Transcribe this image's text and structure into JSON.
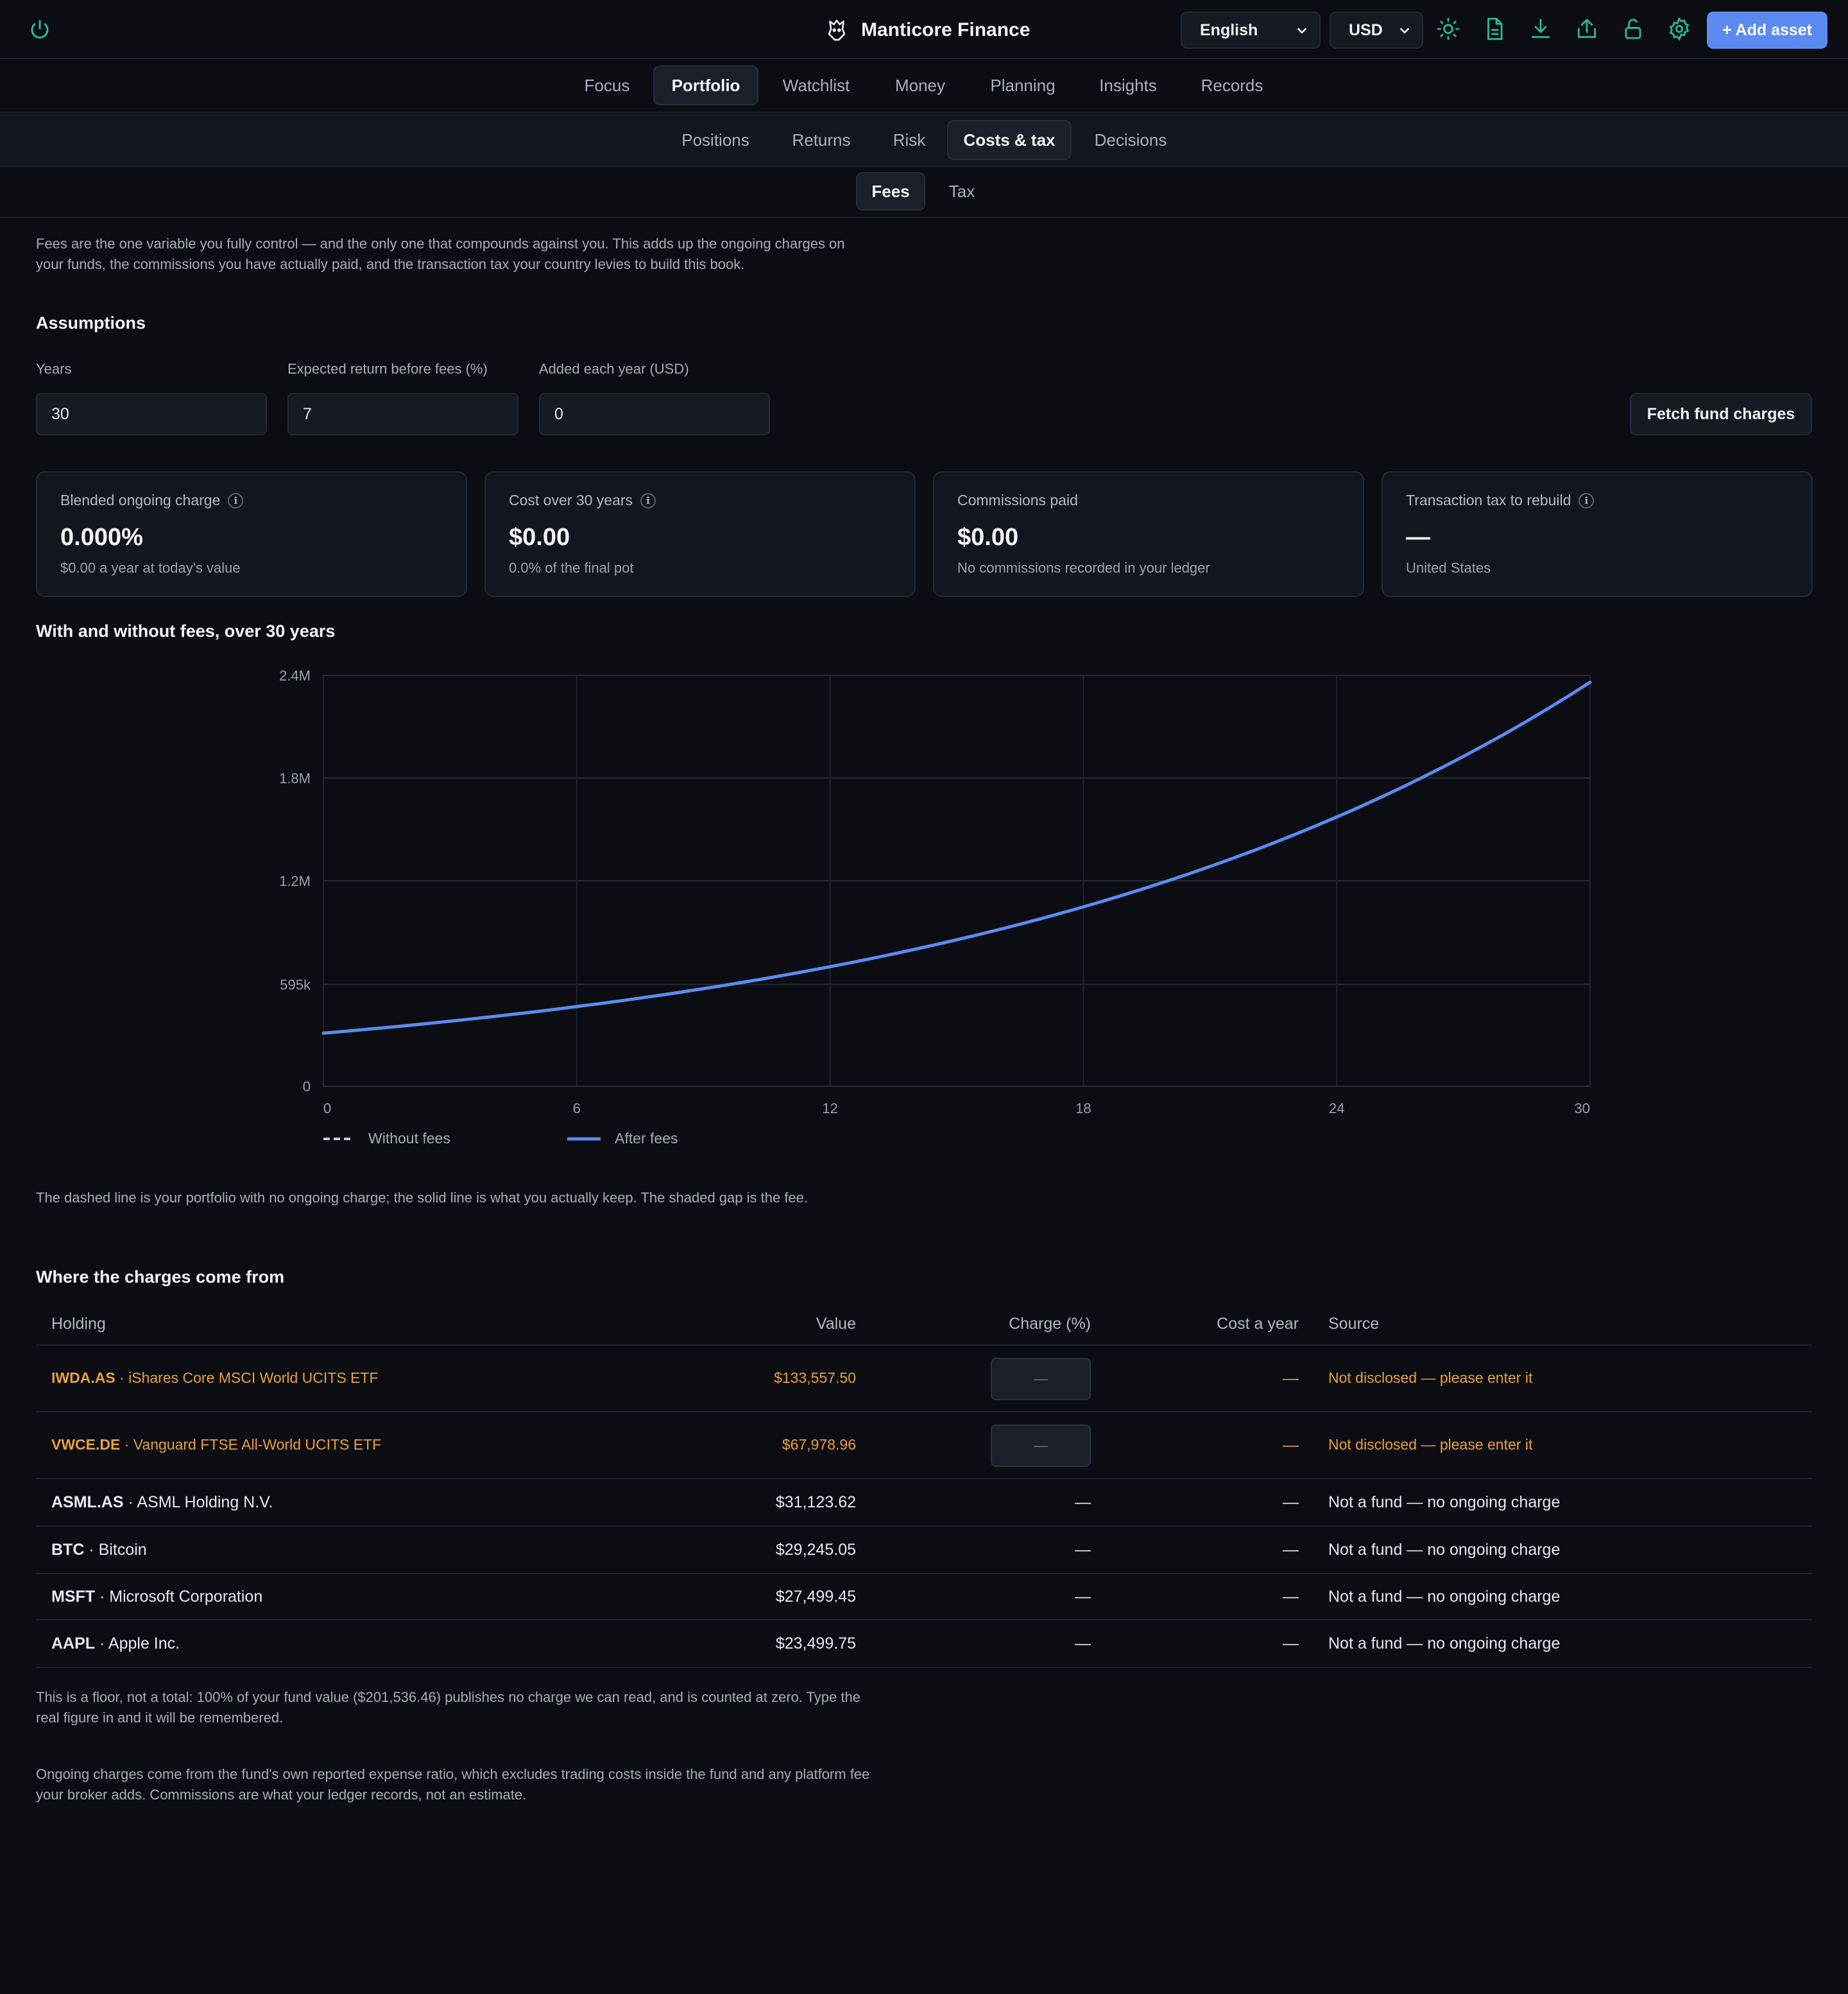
{
  "app": {
    "title": "Manticore Finance"
  },
  "toolbar": {
    "language": "English",
    "currency": "USD",
    "add_asset": "+ Add asset"
  },
  "nav": {
    "primary": [
      "Focus",
      "Portfolio",
      "Watchlist",
      "Money",
      "Planning",
      "Insights",
      "Records"
    ],
    "primary_active": "Portfolio",
    "secondary": [
      "Positions",
      "Returns",
      "Risk",
      "Costs & tax",
      "Decisions"
    ],
    "secondary_active": "Costs & tax",
    "tertiary": [
      "Fees",
      "Tax"
    ],
    "tertiary_active": "Fees"
  },
  "intro": "Fees are the one variable you fully control — and the only one that compounds against you. This adds up the ongoing charges on your funds, the commissions you have actually paid, and the transaction tax your country levies to build this book.",
  "assumptions": {
    "heading": "Assumptions",
    "years_label": "Years",
    "years_value": "30",
    "return_label": "Expected return before fees (%)",
    "return_value": "7",
    "added_label": "Added each year (USD)",
    "added_value": "0",
    "fetch_button": "Fetch fund charges"
  },
  "cards": [
    {
      "label": "Blended ongoing charge",
      "value": "0.000%",
      "sub": "$0.00 a year at today's value",
      "info": true
    },
    {
      "label": "Cost over 30 years",
      "value": "$0.00",
      "sub": "0.0% of the final pot",
      "info": true
    },
    {
      "label": "Commissions paid",
      "value": "$0.00",
      "sub": "No commissions recorded in your ledger",
      "info": false
    },
    {
      "label": "Transaction tax to rebuild",
      "value": "—",
      "sub": "United States",
      "info": true
    }
  ],
  "chart_heading": "With and without fees, over 30 years",
  "chart_data": {
    "type": "line",
    "x_ticks": [
      0,
      6,
      12,
      18,
      24,
      30
    ],
    "y_ticks": [
      0,
      595000,
      1200000,
      1800000,
      2400000
    ],
    "y_tick_labels": [
      "0",
      "595k",
      "1.2M",
      "1.8M",
      "2.4M"
    ],
    "xlim": [
      0,
      30
    ],
    "ylim": [
      0,
      2400000
    ],
    "grid": true,
    "legend_position": "bottom-left",
    "series": [
      {
        "name": "Without fees",
        "style": "dashed",
        "color": "#c9ced8",
        "start": 310000,
        "rate": 0.07
      },
      {
        "name": "After fees",
        "style": "solid",
        "color": "#5b8bf0",
        "start": 310000,
        "rate": 0.07
      }
    ]
  },
  "chart_note": "The dashed line is your portfolio with no ongoing charge; the solid line is what you actually keep. The shaded gap is the fee.",
  "charges": {
    "heading": "Where the charges come from",
    "columns": [
      "Holding",
      "Value",
      "Charge (%)",
      "Cost a year",
      "Source"
    ],
    "rows": [
      {
        "symbol": "IWDA.AS",
        "name": "iShares Core MSCI World UCITS ETF",
        "value": "$133,557.50",
        "charge": "—",
        "cost": "—",
        "source": "Not disclosed — please enter it",
        "missing": true
      },
      {
        "symbol": "VWCE.DE",
        "name": "Vanguard FTSE All-World UCITS ETF",
        "value": "$67,978.96",
        "charge": "—",
        "cost": "—",
        "source": "Not disclosed — please enter it",
        "missing": true
      },
      {
        "symbol": "ASML.AS",
        "name": "ASML Holding N.V.",
        "value": "$31,123.62",
        "charge": "—",
        "cost": "—",
        "source": "Not a fund — no ongoing charge",
        "missing": false
      },
      {
        "symbol": "BTC",
        "name": "Bitcoin",
        "value": "$29,245.05",
        "charge": "—",
        "cost": "—",
        "source": "Not a fund — no ongoing charge",
        "missing": false
      },
      {
        "symbol": "MSFT",
        "name": "Microsoft Corporation",
        "value": "$27,499.45",
        "charge": "—",
        "cost": "—",
        "source": "Not a fund — no ongoing charge",
        "missing": false
      },
      {
        "symbol": "AAPL",
        "name": "Apple Inc.",
        "value": "$23,499.75",
        "charge": "—",
        "cost": "—",
        "source": "Not a fund — no ongoing charge",
        "missing": false
      }
    ]
  },
  "footnote1": "This is a floor, not a total: 100% of your fund value ($201,536.46) publishes no charge we can read, and is counted at zero. Type the real figure in and it will be remembered.",
  "footnote2": "Ongoing charges come from the fund's own reported expense ratio, which excludes trading costs inside the fund and any platform fee your broker adds. Commissions are what your ledger records, not an estimate.",
  "colors": {
    "accent": "#5b8bf0",
    "icon": "#2bb89a",
    "warning": "#e8a13a",
    "background": "#0b0d12"
  }
}
